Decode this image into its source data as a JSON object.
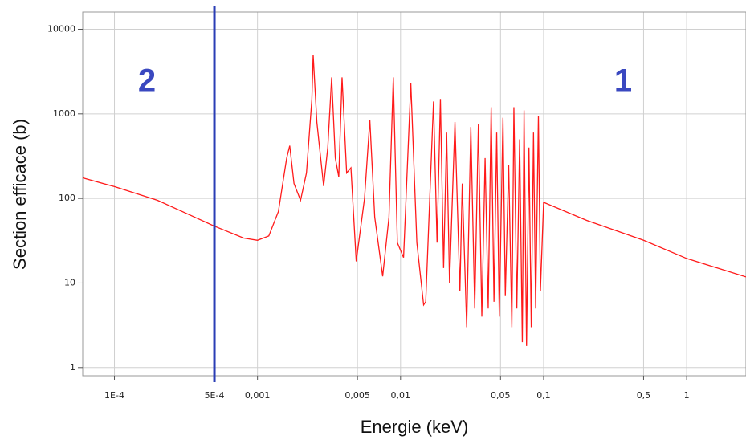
{
  "chart_data": {
    "type": "line",
    "x_label": "Energie (keV)",
    "y_label": "Section efficace (b)",
    "xscale": "log",
    "yscale": "log",
    "grid": true,
    "xlim": [
      6e-05,
      2.6
    ],
    "ylim": [
      0.8,
      16000
    ],
    "xticks": [
      {
        "value": 0.0001,
        "label": "1E-4"
      },
      {
        "value": 0.0005,
        "label": "5E-4"
      },
      {
        "value": 0.001,
        "label": "0,001"
      },
      {
        "value": 0.005,
        "label": "0,005"
      },
      {
        "value": 0.01,
        "label": "0,01"
      },
      {
        "value": 0.05,
        "label": "0,05"
      },
      {
        "value": 0.1,
        "label": "0,1"
      },
      {
        "value": 0.5,
        "label": "0,5"
      },
      1
    ],
    "yticks": [
      1,
      10,
      100,
      1000,
      10000
    ],
    "vline": {
      "value": 0.0005,
      "color": "#2a3db5"
    },
    "annotations": [
      "2",
      "1"
    ],
    "annotation_color": "#3a48c0",
    "series": [
      {
        "color": "#ff1a1a",
        "x": [
          6e-05,
          0.0001,
          0.0002,
          0.0005,
          0.0008,
          0.001,
          0.0012,
          0.0014,
          0.0016,
          0.00168,
          0.0018,
          0.002,
          0.0022,
          0.0024,
          0.00245,
          0.0026,
          0.0029,
          0.0031,
          0.0033,
          0.0035,
          0.0037,
          0.0039,
          0.0042,
          0.0045,
          0.0049,
          0.0056,
          0.0061,
          0.0066,
          0.0075,
          0.0083,
          0.0089,
          0.0095,
          0.0105,
          0.0118,
          0.013,
          0.0145,
          0.015,
          0.017,
          0.018,
          0.019,
          0.02,
          0.021,
          0.022,
          0.024,
          0.026,
          0.027,
          0.029,
          0.031,
          0.033,
          0.035,
          0.037,
          0.039,
          0.041,
          0.043,
          0.045,
          0.047,
          0.049,
          0.052,
          0.054,
          0.057,
          0.06,
          0.062,
          0.065,
          0.068,
          0.071,
          0.073,
          0.076,
          0.079,
          0.082,
          0.085,
          0.088,
          0.092,
          0.095,
          0.1,
          0.2,
          0.5,
          1,
          2.6
        ],
        "values": [
          175,
          138,
          95,
          47,
          34,
          32,
          36,
          70,
          300,
          420,
          150,
          95,
          200,
          1500,
          5000,
          800,
          140,
          400,
          2700,
          300,
          180,
          2700,
          200,
          230,
          18,
          100,
          850,
          60,
          12,
          60,
          2700,
          30,
          20,
          2300,
          30,
          5.5,
          6,
          1400,
          30,
          1500,
          15,
          600,
          10,
          800,
          8,
          150,
          3,
          700,
          5,
          750,
          4,
          300,
          5,
          1200,
          6,
          600,
          4,
          900,
          7,
          250,
          3,
          1200,
          5,
          500,
          2,
          1100,
          1.8,
          400,
          3,
          600,
          5,
          950,
          8,
          90,
          55,
          32,
          19.5,
          11.8
        ]
      }
    ]
  }
}
